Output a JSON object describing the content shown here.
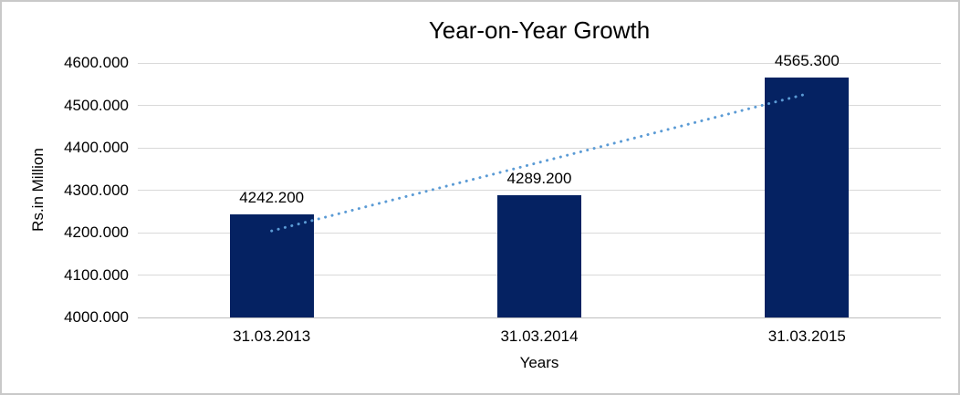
{
  "chart_data": {
    "type": "bar",
    "title": "Year-on-Year Growth",
    "xlabel": "Years",
    "ylabel": "Rs.in Million",
    "categories": [
      "31.03.2013",
      "31.03.2014",
      "31.03.2015"
    ],
    "values": [
      4242.2,
      4289.2,
      4565.3
    ],
    "data_labels": [
      "4242.200",
      "4289.200",
      "4565.300"
    ],
    "ylim": [
      4000,
      4600
    ],
    "y_tick_step": 100,
    "y_tick_labels": [
      "4000.000",
      "4100.000",
      "4200.000",
      "4300.000",
      "4400.000",
      "4500.000",
      "4600.000"
    ],
    "grid": true,
    "legend": false,
    "bar_color": "#052262",
    "grid_color": "#d9d9d9",
    "axis_line_color": "#bfbfbf",
    "text_color": "#000000",
    "trendline": {
      "type": "linear",
      "style": "dotted",
      "color": "#5b9bd5"
    }
  },
  "frame": {
    "border_color": "#c9c9c9",
    "background": "#ffffff"
  }
}
